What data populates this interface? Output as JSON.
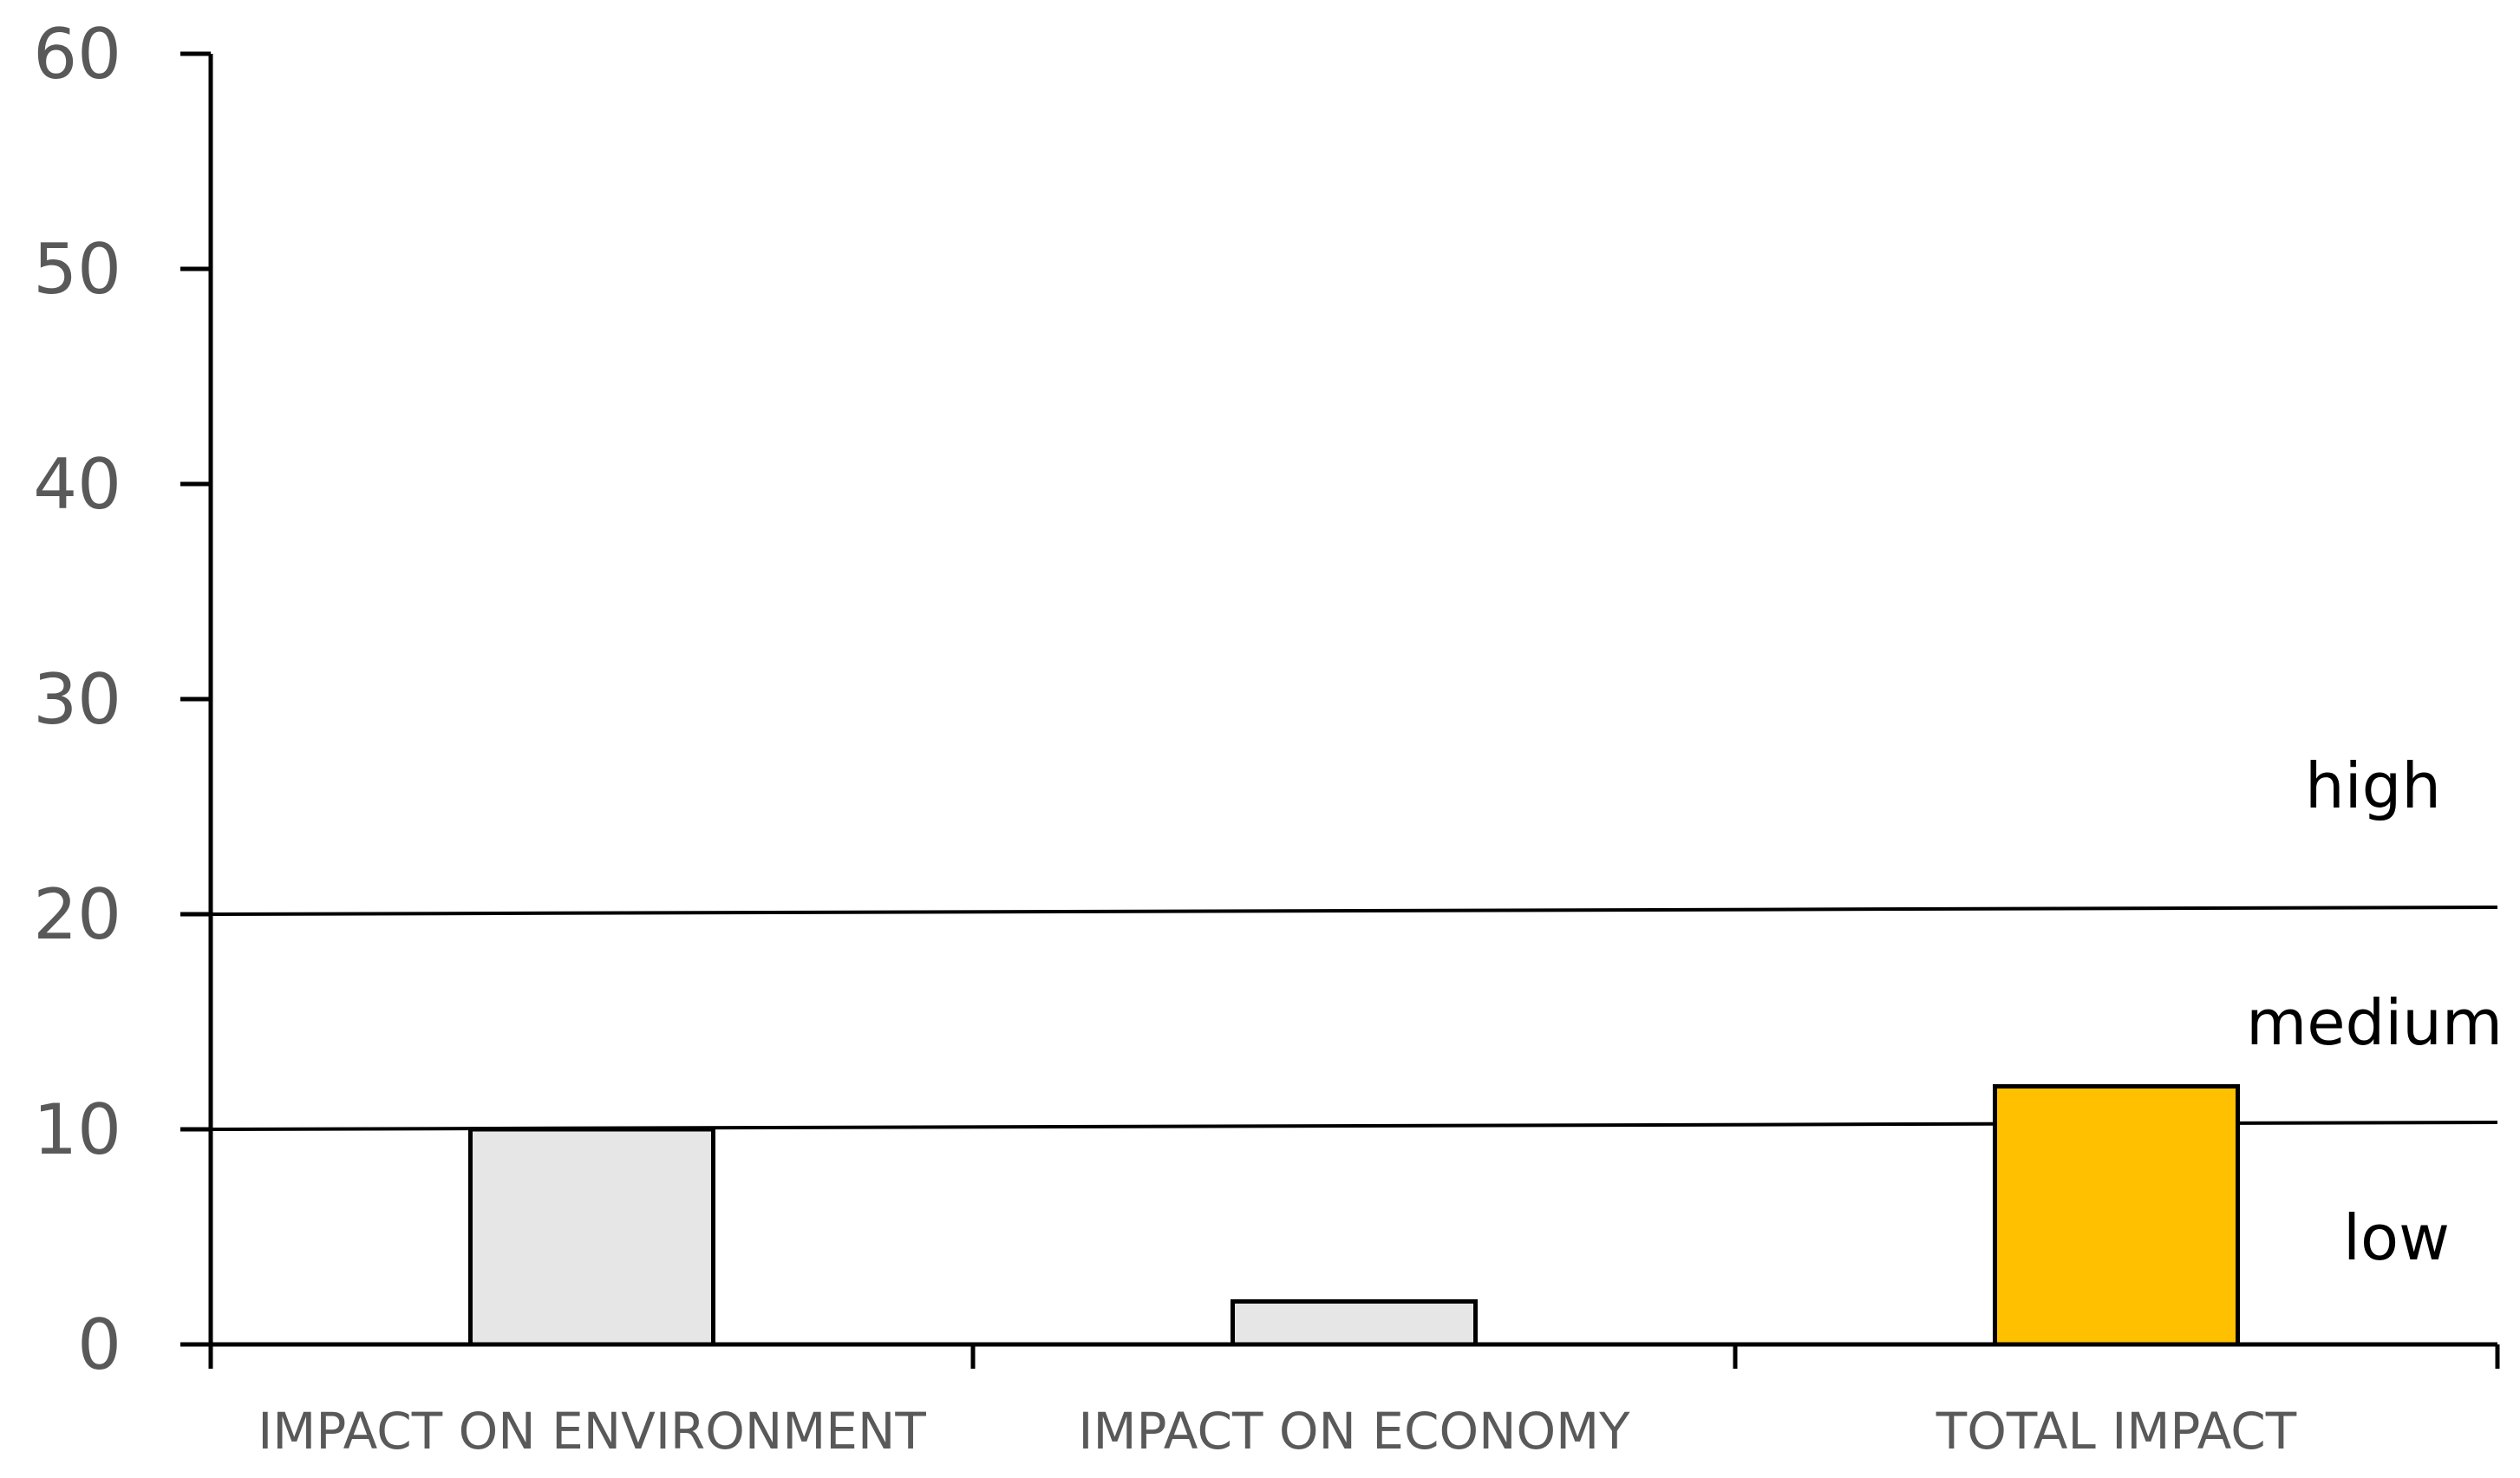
{
  "chart_data": {
    "type": "bar",
    "categories": [
      "IMPACT ON ENVIRONMENT",
      "IMPACT ON ECONOMY",
      "TOTAL IMPACT"
    ],
    "values": [
      10,
      2,
      12
    ],
    "bar_colors": [
      "#e6e6e6",
      "#e6e6e6",
      "#ffc000"
    ],
    "bar_outline_color": "#000000",
    "ylim": [
      0,
      60
    ],
    "yticks": [
      0,
      10,
      20,
      30,
      40,
      50,
      60
    ],
    "title": "",
    "xlabel": "",
    "ylabel": "",
    "grid": false,
    "thresholds": [
      10,
      20
    ],
    "zones": [
      {
        "label": "low",
        "level": 5
      },
      {
        "label": "medium",
        "level": 15
      },
      {
        "label": "high",
        "level": 26
      }
    ]
  }
}
